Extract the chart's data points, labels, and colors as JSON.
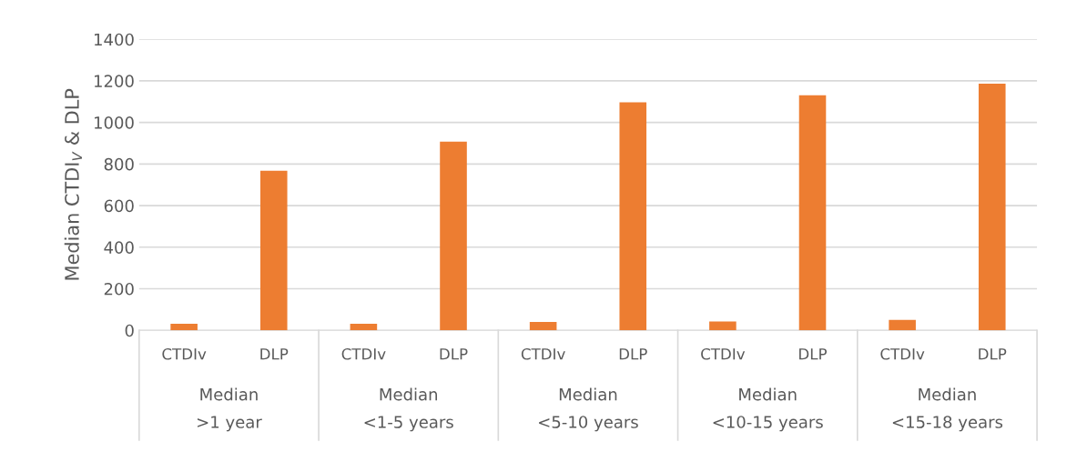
{
  "chart_data": {
    "type": "bar",
    "ylabel": "Median CTDI$_{V}$ & DLP",
    "categories": [
      "CTDIv",
      "DLP",
      "CTDIv",
      "DLP",
      "CTDIv",
      "DLP",
      "CTDIv",
      "DLP",
      "CTDIv",
      "DLP"
    ],
    "values": [
      32,
      768,
      32,
      908,
      40,
      1097,
      43,
      1131,
      50,
      1186
    ],
    "color": "#ed7d31",
    "ylim": [
      0,
      1400
    ],
    "yticks": [
      0,
      200,
      400,
      600,
      800,
      1000,
      1200,
      1400
    ],
    "grid": "y",
    "legend": false,
    "annotations": [
      "Median",
      "Median",
      "Median",
      "Median",
      "Median",
      ">1 year",
      "<1-5 years",
      "<5-10 years",
      "<10-15 years",
      "<15-18 years"
    ]
  }
}
